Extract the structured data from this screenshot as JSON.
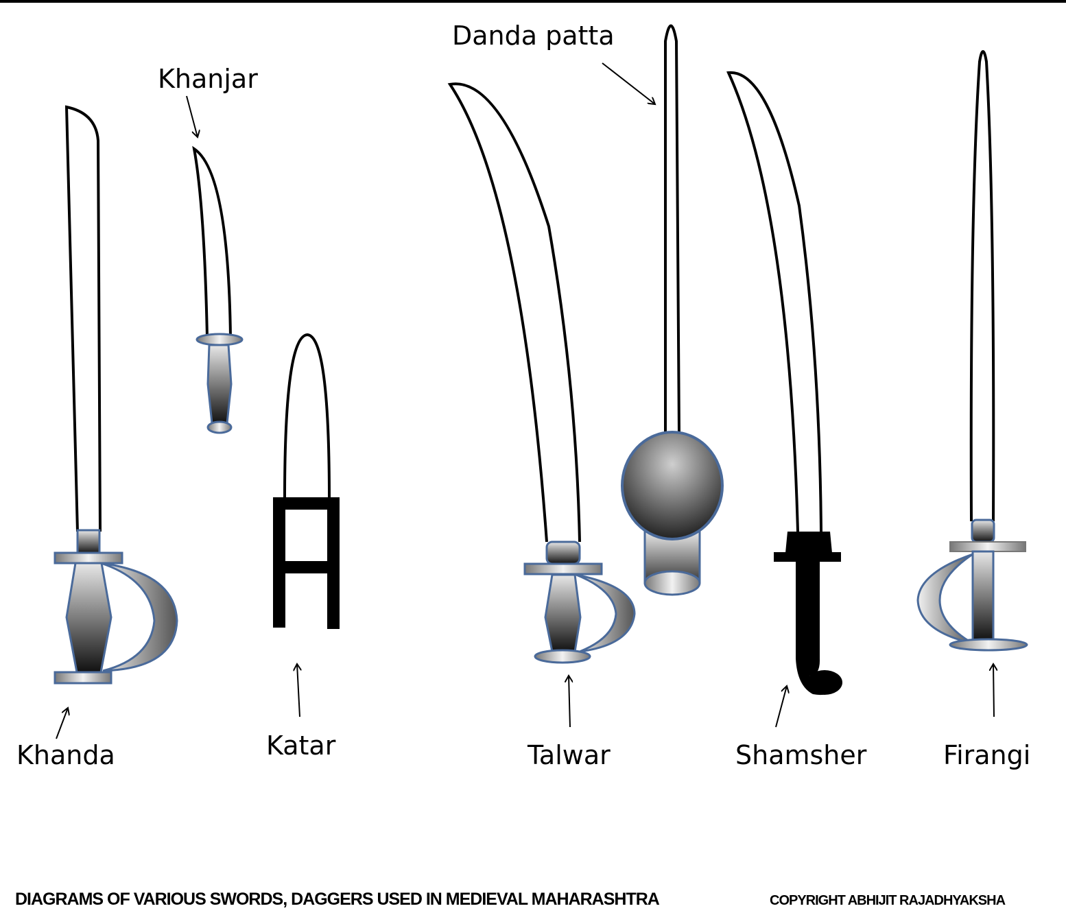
{
  "labels": {
    "khanjar": "Khanjar",
    "danda_patta": "Danda patta",
    "khanda": "Khanda",
    "katar": "Katar",
    "talwar": "Talwar",
    "shamsher": "Shamsher",
    "firangi": "Firangi"
  },
  "footer": {
    "caption": "DIAGRAMS OF VARIOUS SWORDS, DAGGERS USED IN MEDIEVAL MAHARASHTRA",
    "copyright": "COPYRIGHT ABHIJIT RAJADHYAKSHA"
  },
  "colors": {
    "outline": "#000000",
    "hilt_stroke": "#4a6a9a",
    "hilt_dark": "#1a1a1a",
    "hilt_light": "#e8e8e8"
  }
}
